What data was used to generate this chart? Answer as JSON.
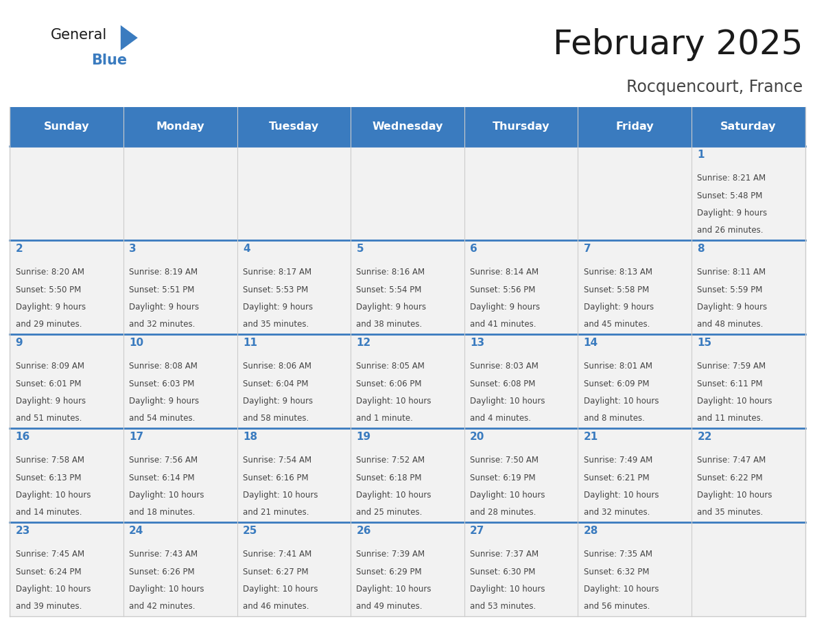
{
  "title": "February 2025",
  "subtitle": "Rocquencourt, France",
  "header_bg": "#3a7bbf",
  "header_text_color": "#ffffff",
  "days_of_week": [
    "Sunday",
    "Monday",
    "Tuesday",
    "Wednesday",
    "Thursday",
    "Friday",
    "Saturday"
  ],
  "cell_bg": "#f2f2f2",
  "separator_color": "#3a7bbf",
  "day_number_color": "#3a7bbf",
  "text_color": "#444444",
  "border_color": "#cccccc",
  "logo_general_color": "#1a1a1a",
  "logo_blue_color": "#3a7bbf",
  "title_color": "#1a1a1a",
  "subtitle_color": "#444444",
  "calendar_data": [
    [
      {
        "day": null,
        "sunrise": null,
        "sunset": null,
        "daylight": null
      },
      {
        "day": null,
        "sunrise": null,
        "sunset": null,
        "daylight": null
      },
      {
        "day": null,
        "sunrise": null,
        "sunset": null,
        "daylight": null
      },
      {
        "day": null,
        "sunrise": null,
        "sunset": null,
        "daylight": null
      },
      {
        "day": null,
        "sunrise": null,
        "sunset": null,
        "daylight": null
      },
      {
        "day": null,
        "sunrise": null,
        "sunset": null,
        "daylight": null
      },
      {
        "day": 1,
        "sunrise": "8:21 AM",
        "sunset": "5:48 PM",
        "daylight": "9 hours\nand 26 minutes."
      }
    ],
    [
      {
        "day": 2,
        "sunrise": "8:20 AM",
        "sunset": "5:50 PM",
        "daylight": "9 hours\nand 29 minutes."
      },
      {
        "day": 3,
        "sunrise": "8:19 AM",
        "sunset": "5:51 PM",
        "daylight": "9 hours\nand 32 minutes."
      },
      {
        "day": 4,
        "sunrise": "8:17 AM",
        "sunset": "5:53 PM",
        "daylight": "9 hours\nand 35 minutes."
      },
      {
        "day": 5,
        "sunrise": "8:16 AM",
        "sunset": "5:54 PM",
        "daylight": "9 hours\nand 38 minutes."
      },
      {
        "day": 6,
        "sunrise": "8:14 AM",
        "sunset": "5:56 PM",
        "daylight": "9 hours\nand 41 minutes."
      },
      {
        "day": 7,
        "sunrise": "8:13 AM",
        "sunset": "5:58 PM",
        "daylight": "9 hours\nand 45 minutes."
      },
      {
        "day": 8,
        "sunrise": "8:11 AM",
        "sunset": "5:59 PM",
        "daylight": "9 hours\nand 48 minutes."
      }
    ],
    [
      {
        "day": 9,
        "sunrise": "8:09 AM",
        "sunset": "6:01 PM",
        "daylight": "9 hours\nand 51 minutes."
      },
      {
        "day": 10,
        "sunrise": "8:08 AM",
        "sunset": "6:03 PM",
        "daylight": "9 hours\nand 54 minutes."
      },
      {
        "day": 11,
        "sunrise": "8:06 AM",
        "sunset": "6:04 PM",
        "daylight": "9 hours\nand 58 minutes."
      },
      {
        "day": 12,
        "sunrise": "8:05 AM",
        "sunset": "6:06 PM",
        "daylight": "10 hours\nand 1 minute."
      },
      {
        "day": 13,
        "sunrise": "8:03 AM",
        "sunset": "6:08 PM",
        "daylight": "10 hours\nand 4 minutes."
      },
      {
        "day": 14,
        "sunrise": "8:01 AM",
        "sunset": "6:09 PM",
        "daylight": "10 hours\nand 8 minutes."
      },
      {
        "day": 15,
        "sunrise": "7:59 AM",
        "sunset": "6:11 PM",
        "daylight": "10 hours\nand 11 minutes."
      }
    ],
    [
      {
        "day": 16,
        "sunrise": "7:58 AM",
        "sunset": "6:13 PM",
        "daylight": "10 hours\nand 14 minutes."
      },
      {
        "day": 17,
        "sunrise": "7:56 AM",
        "sunset": "6:14 PM",
        "daylight": "10 hours\nand 18 minutes."
      },
      {
        "day": 18,
        "sunrise": "7:54 AM",
        "sunset": "6:16 PM",
        "daylight": "10 hours\nand 21 minutes."
      },
      {
        "day": 19,
        "sunrise": "7:52 AM",
        "sunset": "6:18 PM",
        "daylight": "10 hours\nand 25 minutes."
      },
      {
        "day": 20,
        "sunrise": "7:50 AM",
        "sunset": "6:19 PM",
        "daylight": "10 hours\nand 28 minutes."
      },
      {
        "day": 21,
        "sunrise": "7:49 AM",
        "sunset": "6:21 PM",
        "daylight": "10 hours\nand 32 minutes."
      },
      {
        "day": 22,
        "sunrise": "7:47 AM",
        "sunset": "6:22 PM",
        "daylight": "10 hours\nand 35 minutes."
      }
    ],
    [
      {
        "day": 23,
        "sunrise": "7:45 AM",
        "sunset": "6:24 PM",
        "daylight": "10 hours\nand 39 minutes."
      },
      {
        "day": 24,
        "sunrise": "7:43 AM",
        "sunset": "6:26 PM",
        "daylight": "10 hours\nand 42 minutes."
      },
      {
        "day": 25,
        "sunrise": "7:41 AM",
        "sunset": "6:27 PM",
        "daylight": "10 hours\nand 46 minutes."
      },
      {
        "day": 26,
        "sunrise": "7:39 AM",
        "sunset": "6:29 PM",
        "daylight": "10 hours\nand 49 minutes."
      },
      {
        "day": 27,
        "sunrise": "7:37 AM",
        "sunset": "6:30 PM",
        "daylight": "10 hours\nand 53 minutes."
      },
      {
        "day": 28,
        "sunrise": "7:35 AM",
        "sunset": "6:32 PM",
        "daylight": "10 hours\nand 56 minutes."
      },
      {
        "day": null,
        "sunrise": null,
        "sunset": null,
        "daylight": null
      }
    ]
  ]
}
